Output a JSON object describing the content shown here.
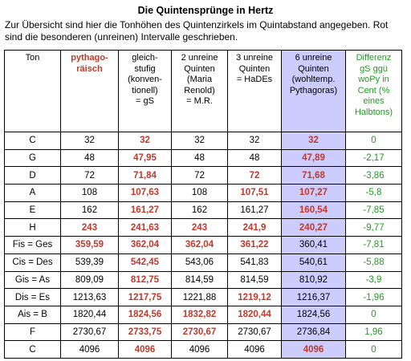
{
  "title": "Die Quintensprünge in Hertz",
  "intro": [
    "Zur Übersicht sind hier die Tonhöhen des Quintenzirkels im Quintabstand angegeben. Rot",
    "sind die besonderen (unreinen) Intervalle geschrieben."
  ],
  "table": {
    "header": [
      [
        "Ton"
      ],
      [
        "pythago-",
        "räisch"
      ],
      [
        "gleich-",
        "stufig",
        "(konven-",
        "tionell)",
        "= gS"
      ],
      [
        "2 unreine",
        "Quinten",
        "(Maria",
        "Renold)",
        "= M.R."
      ],
      [
        "3 unreine",
        "Quinten",
        "= HaDEs"
      ],
      [
        "6 unreine",
        "Quinten",
        "(wohltemp.",
        "Pythagoras)"
      ],
      [
        "Differenz",
        "gS ggü",
        "woPy in",
        "Cent (%",
        "eines",
        "Halbtons)"
      ]
    ],
    "rows": [
      [
        "C",
        "32",
        "32",
        "32",
        "32",
        "32",
        "0"
      ],
      [
        "G",
        "48",
        "47,95",
        "48",
        "48",
        "47,89",
        "-2,17"
      ],
      [
        "D",
        "72",
        "71,84",
        "72",
        "72",
        "71,68",
        "-3,86"
      ],
      [
        "A",
        "108",
        "107,63",
        "108",
        "107,51",
        "107,27",
        "-5,8"
      ],
      [
        "E",
        "162",
        "161,27",
        "162",
        "161,27",
        "160,54",
        "-7,85"
      ],
      [
        "H",
        "243",
        "241,63",
        "243",
        "241,9",
        "240,27",
        "-9,77"
      ],
      [
        "Fis = Ges",
        "359,59",
        "362,04",
        "362,04",
        "361,22",
        "360,41",
        "-7,81"
      ],
      [
        "Cis = Des",
        "539,39",
        "542,45",
        "543,06",
        "541,83",
        "540,61",
        "-5,88"
      ],
      [
        "Gis = As",
        "809,09",
        "812,75",
        "814,59",
        "814,59",
        "810,92",
        "-3,9"
      ],
      [
        "Dis = Es",
        "1213,63",
        "1217,75",
        "1221,88",
        "1219,12",
        "1216,37",
        "-1,96"
      ],
      [
        "Ais = B",
        "1820,44",
        "1824,56",
        "1832,82",
        "1820,44",
        "1824,56",
        "0"
      ],
      [
        "F",
        "2730,67",
        "2733,75",
        "2730,67",
        "2730,67",
        "2736,84",
        "1,96"
      ],
      [
        "C",
        "4096",
        "4096",
        "4096",
        "4096",
        "4096",
        "0"
      ]
    ],
    "red_cells": [
      [
        2,
        5
      ],
      [
        2,
        5
      ],
      [
        2,
        4,
        5
      ],
      [
        2,
        4,
        5
      ],
      [
        2,
        5
      ],
      [
        1,
        2,
        3,
        4,
        5
      ],
      [
        1,
        2,
        3,
        4
      ],
      [
        2
      ],
      [
        2
      ],
      [
        2,
        4
      ],
      [
        2,
        3,
        4
      ],
      [
        2,
        3
      ],
      [
        2,
        5
      ]
    ]
  }
}
